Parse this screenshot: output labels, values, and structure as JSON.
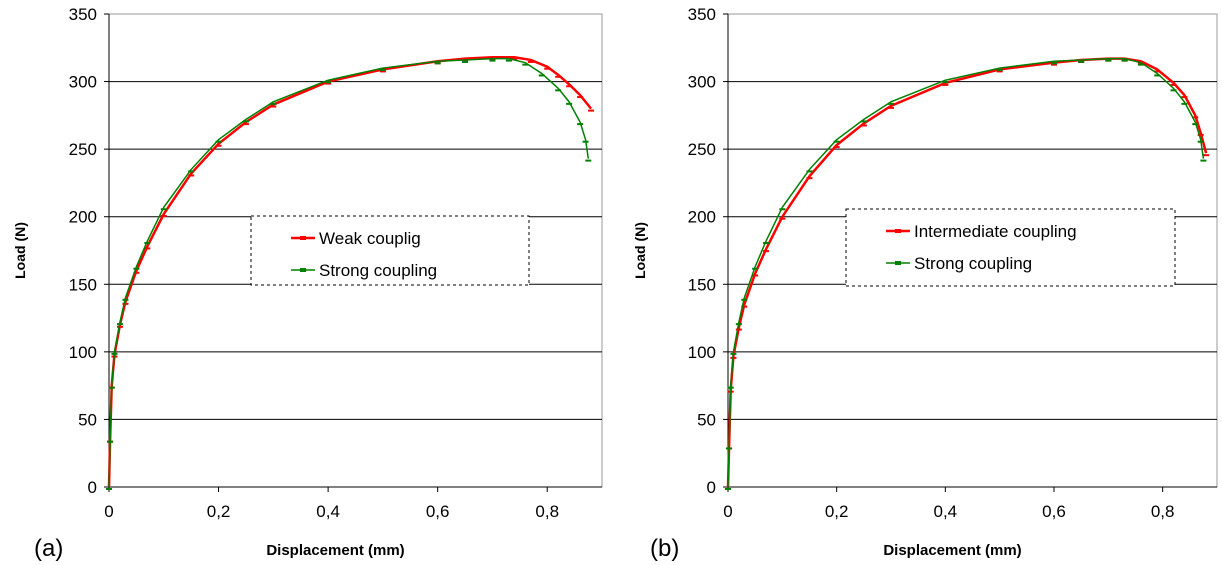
{
  "chart_data": [
    {
      "type": "line",
      "panel_label": "(a)",
      "xlabel": "Displacement (mm)",
      "ylabel": "Load (N)",
      "xlim": [
        0,
        0.9
      ],
      "ylim": [
        0,
        350
      ],
      "x_ticks": [
        "0",
        "0,2",
        "0,4",
        "0,6",
        "0,8"
      ],
      "y_ticks": [
        "0",
        "50",
        "100",
        "150",
        "200",
        "250",
        "300",
        "350"
      ],
      "grid": "horizontal",
      "legend_position": "center",
      "series": [
        {
          "name": "Weak couplig",
          "color": "#ff0000",
          "marker": "dash",
          "x": [
            0,
            0.002,
            0.005,
            0.01,
            0.02,
            0.03,
            0.05,
            0.07,
            0.1,
            0.15,
            0.2,
            0.25,
            0.3,
            0.4,
            0.5,
            0.6,
            0.65,
            0.7,
            0.74,
            0.77,
            0.8,
            0.82,
            0.84,
            0.86,
            0.88
          ],
          "y": [
            0,
            35,
            75,
            98,
            120,
            137,
            160,
            178,
            202,
            232,
            254,
            270,
            283,
            300,
            309,
            315,
            317,
            318,
            318,
            316,
            311,
            305,
            298,
            290,
            280
          ]
        },
        {
          "name": "Strong coupling",
          "color": "#008000",
          "marker": "dash",
          "x": [
            0,
            0.002,
            0.005,
            0.01,
            0.02,
            0.03,
            0.05,
            0.07,
            0.1,
            0.15,
            0.2,
            0.25,
            0.3,
            0.4,
            0.5,
            0.6,
            0.65,
            0.7,
            0.73,
            0.76,
            0.79,
            0.82,
            0.84,
            0.86,
            0.87,
            0.875
          ],
          "y": [
            0,
            35,
            75,
            100,
            122,
            140,
            163,
            182,
            207,
            235,
            257,
            272,
            285,
            301,
            310,
            315,
            316,
            317,
            317,
            314,
            306,
            295,
            285,
            270,
            257,
            243
          ]
        }
      ]
    },
    {
      "type": "line",
      "panel_label": "(b)",
      "xlabel": "Displacement (mm)",
      "ylabel": "Load (N)",
      "xlim": [
        0,
        0.9
      ],
      "ylim": [
        0,
        350
      ],
      "x_ticks": [
        "0",
        "0,2",
        "0,4",
        "0,6",
        "0,8"
      ],
      "y_ticks": [
        "0",
        "50",
        "100",
        "150",
        "200",
        "250",
        "300",
        "350"
      ],
      "grid": "horizontal",
      "legend_position": "center",
      "series": [
        {
          "name": "Intermediate coupling",
          "color": "#ff0000",
          "marker": "dash",
          "x": [
            0,
            0.002,
            0.005,
            0.01,
            0.02,
            0.03,
            0.05,
            0.07,
            0.1,
            0.15,
            0.2,
            0.25,
            0.3,
            0.4,
            0.5,
            0.6,
            0.65,
            0.7,
            0.73,
            0.76,
            0.79,
            0.82,
            0.84,
            0.86,
            0.87,
            0.88
          ],
          "y": [
            0,
            30,
            72,
            97,
            118,
            135,
            158,
            176,
            200,
            230,
            253,
            269,
            282,
            299,
            309,
            314,
            316,
            317,
            317,
            315,
            309,
            299,
            290,
            275,
            262,
            247
          ]
        },
        {
          "name": "Strong coupling",
          "color": "#008000",
          "marker": "dash",
          "x": [
            0,
            0.002,
            0.005,
            0.01,
            0.02,
            0.03,
            0.05,
            0.07,
            0.1,
            0.15,
            0.2,
            0.25,
            0.3,
            0.4,
            0.5,
            0.6,
            0.65,
            0.7,
            0.73,
            0.76,
            0.79,
            0.82,
            0.84,
            0.86,
            0.87,
            0.875
          ],
          "y": [
            0,
            30,
            75,
            100,
            122,
            140,
            163,
            182,
            207,
            235,
            257,
            272,
            285,
            301,
            310,
            315,
            316,
            317,
            317,
            314,
            306,
            295,
            285,
            270,
            257,
            243
          ]
        }
      ]
    }
  ]
}
